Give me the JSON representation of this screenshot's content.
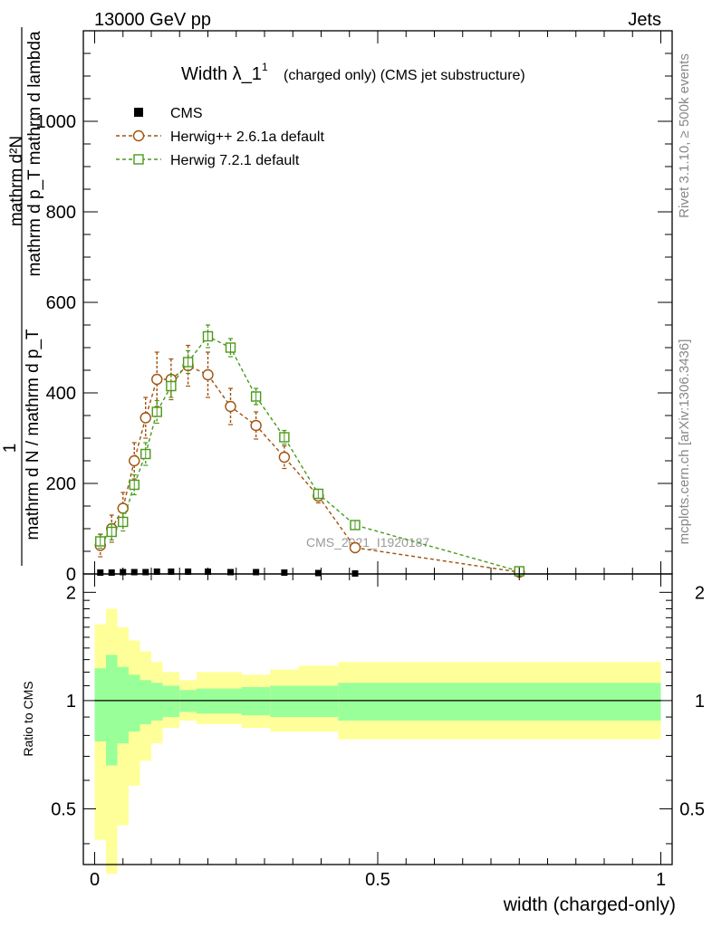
{
  "header": {
    "left": "13000 GeV pp",
    "right": "Jets"
  },
  "side_labels": {
    "rivet": "Rivet 3.1.10, ≥ 500k events",
    "mcplots": "mcplots.cern.ch [arXiv:1306.3436]"
  },
  "colors": {
    "cms": "#000000",
    "herwigpp": "#a0520e",
    "herwig7": "#4a9a1a",
    "band_outer": "#ffff99",
    "band_inner": "#99ff99",
    "watermark": "#9a9a9a"
  },
  "chart_data": [
    {
      "type": "line",
      "title": "Width λ_1",
      "title_superscript": "1",
      "subtitle": "(charged only) (CMS jet substructure)",
      "xlabel": "",
      "ylabel": {
        "numerator_1": "mathrm d²N",
        "numerator_2": "mathrm d p_T mathrm d lambda",
        "one": "1",
        "denominator": "mathrm d N / mathrm d p_T"
      },
      "xlim": [
        -0.02,
        1.02
      ],
      "ylim": [
        0,
        1200
      ],
      "yticks": [
        0,
        200,
        400,
        600,
        800,
        1000
      ],
      "ytick_labels": [
        "0",
        "200",
        "400",
        "600",
        "800",
        "1000"
      ],
      "watermark": "CMS_2021_I1920187",
      "legend": {
        "position": "top-left",
        "entries": [
          {
            "label": "CMS",
            "marker": "square-filled"
          },
          {
            "label": "Herwig++ 2.6.1a default",
            "marker": "circle-open"
          },
          {
            "label": "Herwig 7.2.1 default",
            "marker": "square-open"
          }
        ]
      },
      "series": [
        {
          "name": "CMS",
          "x": [
            0.01,
            0.03,
            0.05,
            0.07,
            0.09,
            0.11,
            0.135,
            0.165,
            0.2,
            0.24,
            0.285,
            0.335,
            0.395,
            0.46
          ],
          "values": [
            3,
            3,
            4,
            4,
            4,
            5,
            5,
            5,
            5,
            4,
            4,
            3,
            2,
            1
          ]
        },
        {
          "name": "Herwig++ 2.6.1a default",
          "x": [
            0.01,
            0.03,
            0.05,
            0.07,
            0.09,
            0.11,
            0.135,
            0.165,
            0.2,
            0.24,
            0.285,
            0.335,
            0.395,
            0.46,
            0.75
          ],
          "values": [
            63,
            100,
            145,
            250,
            345,
            430,
            430,
            460,
            440,
            370,
            328,
            258,
            172,
            58,
            4
          ],
          "errors": [
            25,
            30,
            35,
            40,
            45,
            60,
            45,
            45,
            50,
            40,
            30,
            25,
            15,
            10,
            3
          ]
        },
        {
          "name": "Herwig 7.2.1 default",
          "x": [
            0.01,
            0.03,
            0.05,
            0.07,
            0.09,
            0.11,
            0.135,
            0.165,
            0.2,
            0.24,
            0.285,
            0.335,
            0.395,
            0.46,
            0.75
          ],
          "values": [
            72,
            93,
            115,
            197,
            265,
            358,
            415,
            468,
            525,
            500,
            392,
            302,
            177,
            108,
            6
          ],
          "errors": [
            15,
            18,
            20,
            22,
            25,
            25,
            25,
            25,
            25,
            20,
            18,
            15,
            10,
            8,
            3
          ]
        }
      ]
    },
    {
      "type": "area",
      "ylabel": "Ratio to CMS",
      "xlabel": "width (charged-only)",
      "xlim": [
        -0.02,
        1.02
      ],
      "ylim": [
        0.35,
        2.25
      ],
      "yscale": "log",
      "yticks": [
        0.5,
        1,
        2
      ],
      "ytick_labels": [
        "0.5",
        "1",
        "2"
      ],
      "xticks": [
        0,
        0.5,
        1
      ],
      "xtick_labels": [
        "0",
        "0.5",
        "1"
      ],
      "reference_line": 1,
      "bins": [
        0,
        0.02,
        0.04,
        0.06,
        0.08,
        0.1,
        0.12,
        0.15,
        0.18,
        0.22,
        0.26,
        0.31,
        0.36,
        0.43,
        1.0
      ],
      "band_outer": {
        "lower": [
          0.41,
          0.33,
          0.45,
          0.58,
          0.68,
          0.76,
          0.84,
          0.88,
          0.86,
          0.86,
          0.84,
          0.82,
          0.82,
          0.78
        ],
        "upper": [
          1.63,
          1.8,
          1.6,
          1.47,
          1.37,
          1.28,
          1.2,
          1.14,
          1.2,
          1.2,
          1.18,
          1.22,
          1.25,
          1.28
        ]
      },
      "band_inner": {
        "lower": [
          0.77,
          0.66,
          0.76,
          0.82,
          0.86,
          0.88,
          0.9,
          0.93,
          0.92,
          0.92,
          0.91,
          0.9,
          0.9,
          0.88
        ]
      }
    }
  ]
}
